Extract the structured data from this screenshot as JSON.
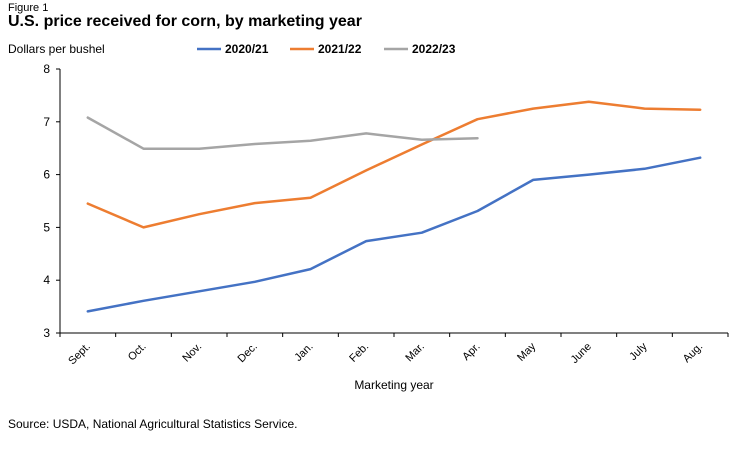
{
  "figure_label": "Figure 1",
  "title": "U.S. price received for corn, by marketing year",
  "source": "Source: USDA, National Agricultural Statistics Service.",
  "chart_data": {
    "type": "line",
    "title": "U.S. price received for corn, by marketing year",
    "ylabel": "Dollars per bushel",
    "xlabel": "Marketing year",
    "ylim": [
      3,
      8
    ],
    "yticks": [
      3,
      4,
      5,
      6,
      7,
      8
    ],
    "grid": false,
    "legend_position": "top",
    "categories": [
      "Sept.",
      "Oct.",
      "Nov.",
      "Dec.",
      "Jan.",
      "Feb.",
      "Mar.",
      "Apr.",
      "May",
      "June",
      "July",
      "Aug."
    ],
    "series": [
      {
        "name": "2020/21",
        "color": "#4472c4",
        "values": [
          3.41,
          3.61,
          3.79,
          3.97,
          4.21,
          4.74,
          4.9,
          5.31,
          5.9,
          6.0,
          6.11,
          6.32
        ]
      },
      {
        "name": "2021/22",
        "color": "#ed7d31",
        "values": [
          5.45,
          5.0,
          5.25,
          5.46,
          5.56,
          6.08,
          6.57,
          7.05,
          7.25,
          7.38,
          7.25,
          7.23
        ]
      },
      {
        "name": "2022/23",
        "color": "#a5a5a5",
        "values": [
          7.08,
          6.49,
          6.49,
          6.58,
          6.64,
          6.78,
          6.66,
          6.69,
          null,
          null,
          null,
          null
        ]
      }
    ]
  }
}
